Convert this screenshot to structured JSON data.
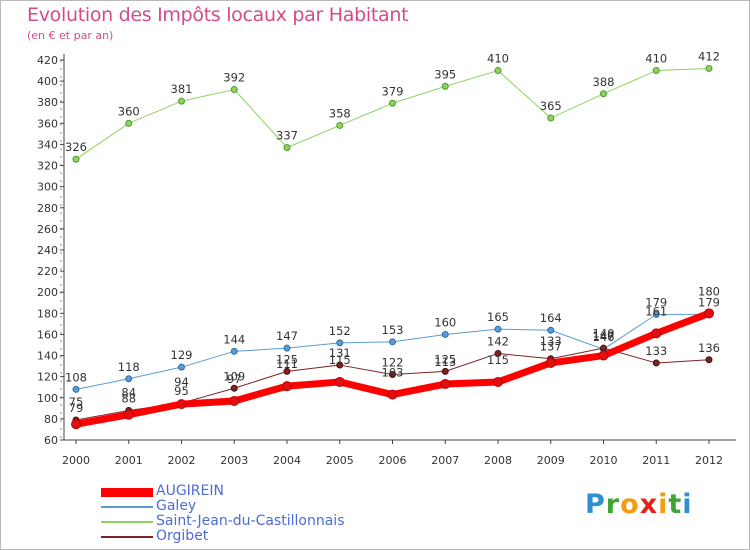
{
  "chart_data": {
    "type": "line",
    "title": "Evolution des Impôts locaux par Habitant",
    "subtitle": "(en € et par an)",
    "xlabel": "",
    "ylabel": "",
    "categories": [
      "2000",
      "2001",
      "2002",
      "2003",
      "2004",
      "2005",
      "2006",
      "2007",
      "2008",
      "2009",
      "2010",
      "2011",
      "2012"
    ],
    "ylim": [
      60,
      420
    ],
    "yticks": [
      60,
      80,
      100,
      120,
      140,
      160,
      180,
      200,
      220,
      240,
      260,
      280,
      300,
      320,
      340,
      360,
      380,
      400,
      420
    ],
    "grid": false,
    "legend_position": "bottom-left",
    "series": [
      {
        "name": "AUGIREIN",
        "color": "#ff0000",
        "values": [
          75,
          84,
          94,
          97,
          111,
          115,
          103,
          113,
          115,
          133,
          140,
          161,
          180
        ],
        "labels": [
          "75",
          "84",
          "94",
          "97",
          "111",
          "115",
          "103",
          "113",
          "115",
          "133",
          "140",
          "161",
          "180"
        ]
      },
      {
        "name": "Galey",
        "color": "#5b9bd5",
        "values": [
          108,
          118,
          129,
          144,
          147,
          152,
          153,
          160,
          165,
          164,
          146,
          179,
          179
        ],
        "labels": [
          "108",
          "118",
          "129",
          "144",
          "147",
          "152",
          "153",
          "160",
          "165",
          "164",
          "146",
          "179",
          "179"
        ]
      },
      {
        "name": "Saint-Jean-du-Castillonnais",
        "color": "#8dd35f",
        "values": [
          326,
          360,
          381,
          392,
          337,
          358,
          379,
          395,
          410,
          365,
          388,
          410,
          412
        ],
        "labels": [
          "326",
          "360",
          "381",
          "392",
          "337",
          "358",
          "379",
          "395",
          "410",
          "365",
          "388",
          "410",
          "412"
        ]
      },
      {
        "name": "Orgibet",
        "color": "#7b2323",
        "values": [
          79,
          88,
          95,
          109,
          125,
          131,
          122,
          125,
          142,
          137,
          147,
          133,
          136
        ],
        "labels": [
          "79",
          "88",
          "95",
          "109",
          "125",
          "131",
          "122",
          "125",
          "142",
          "137",
          "147",
          "133",
          "136"
        ]
      }
    ]
  },
  "brand": {
    "letters": [
      "P",
      "r",
      "o",
      "x",
      "i",
      "t",
      "i"
    ],
    "colors": [
      "#2e8fd1",
      "#3fa535",
      "#f39c12",
      "#e2231a",
      "#f39c12",
      "#3fa535",
      "#2e8fd1"
    ]
  }
}
